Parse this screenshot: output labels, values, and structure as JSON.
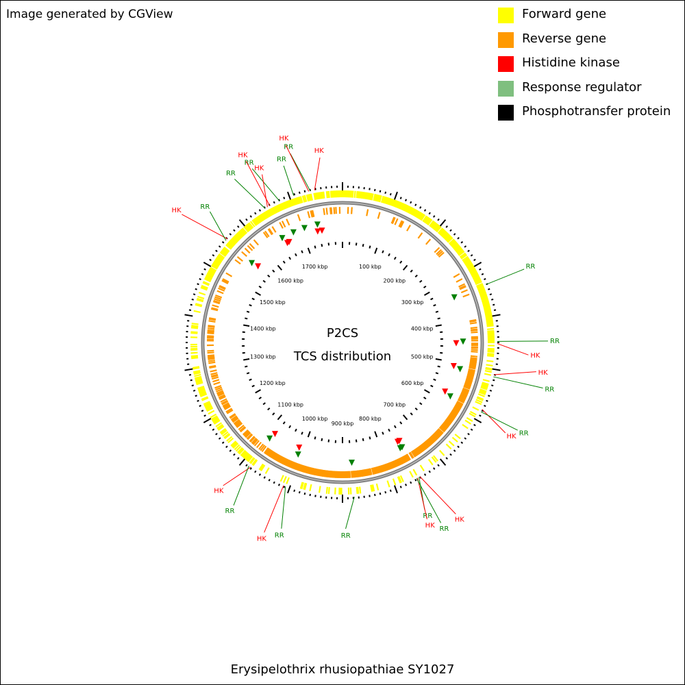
{
  "credit": "Image generated by CGView",
  "legend": [
    {
      "label": "Forward gene",
      "color": "#ffff00"
    },
    {
      "label": "Reverse gene",
      "color": "#ff9900"
    },
    {
      "label": "Histidine kinase",
      "color": "#ff0000"
    },
    {
      "label": "Response regulator",
      "color": "#7fbf7f"
    },
    {
      "label": "Phosphotransfer protein",
      "color": "#000000"
    }
  ],
  "center": {
    "title": "P2CS",
    "subtitle": "TCS distribution"
  },
  "organism": "Erysipelothrix rhusiopathiae SY1027",
  "genome_kbp": 1800,
  "kbp_ticks": [
    {
      "kbp": 100,
      "label": "100 kbp"
    },
    {
      "kbp": 200,
      "label": "200 kbp"
    },
    {
      "kbp": 300,
      "label": "300 kbp"
    },
    {
      "kbp": 400,
      "label": "400 kbp"
    },
    {
      "kbp": 500,
      "label": "500 kbp"
    },
    {
      "kbp": 600,
      "label": "600 kbp"
    },
    {
      "kbp": 700,
      "label": "700 kbp"
    },
    {
      "kbp": 800,
      "label": "800 kbp"
    },
    {
      "kbp": 900,
      "label": "900 kbp"
    },
    {
      "kbp": 1000,
      "label": "1000 kbp"
    },
    {
      "kbp": 1100,
      "label": "1100 kbp"
    },
    {
      "kbp": 1200,
      "label": "1200 kbp"
    },
    {
      "kbp": 1300,
      "label": "1300 kbp"
    },
    {
      "kbp": 1400,
      "label": "1400 kbp"
    },
    {
      "kbp": 1500,
      "label": "1500 kbp"
    },
    {
      "kbp": 1600,
      "label": "1600 kbp"
    },
    {
      "kbp": 1700,
      "label": "1700 kbp"
    }
  ],
  "tcs_features": [
    {
      "kbp": 1748,
      "label": "HK",
      "kind": "hk"
    },
    {
      "kbp": 1740,
      "label": "RR",
      "kind": "rr"
    },
    {
      "kbp": 1737,
      "label": "HK",
      "kind": "hk"
    },
    {
      "kbp": 1708,
      "label": "RR",
      "kind": "rr"
    },
    {
      "kbp": 1680,
      "label": "RR",
      "kind": "rr"
    },
    {
      "kbp": 1660,
      "label": "HK",
      "kind": "hk"
    },
    {
      "kbp": 1655,
      "label": "HK",
      "kind": "hk"
    },
    {
      "kbp": 1650,
      "label": "RR",
      "kind": "rr"
    },
    {
      "kbp": 1560,
      "label": "HK",
      "kind": "hk"
    },
    {
      "kbp": 1556,
      "label": "RR",
      "kind": "rr"
    },
    {
      "kbp": 340,
      "label": "RR",
      "kind": "rr"
    },
    {
      "kbp": 448,
      "label": "RR",
      "kind": "rr"
    },
    {
      "kbp": 452,
      "label": "HK",
      "kind": "hk"
    },
    {
      "kbp": 510,
      "label": "HK",
      "kind": "hk"
    },
    {
      "kbp": 514,
      "label": "RR",
      "kind": "rr"
    },
    {
      "kbp": 578,
      "label": "HK",
      "kind": "hk"
    },
    {
      "kbp": 583,
      "label": "RR",
      "kind": "rr"
    },
    {
      "kbp": 750,
      "label": "HK",
      "kind": "hk"
    },
    {
      "kbp": 752,
      "label": "RR",
      "kind": "rr"
    },
    {
      "kbp": 755,
      "label": "HK",
      "kind": "hk"
    },
    {
      "kbp": 757,
      "label": "RR",
      "kind": "rr"
    },
    {
      "kbp": 878,
      "label": "RR",
      "kind": "rr"
    },
    {
      "kbp": 1008,
      "label": "RR",
      "kind": "rr"
    },
    {
      "kbp": 1012,
      "label": "HK",
      "kind": "hk"
    },
    {
      "kbp": 1082,
      "label": "HK",
      "kind": "hk"
    },
    {
      "kbp": 1086,
      "label": "RR",
      "kind": "rr"
    }
  ],
  "colors": {
    "forward": "#ffff00",
    "reverse": "#ff9900",
    "hk": "#ff0000",
    "rr": "#008000",
    "rr_legend": "#7fbf7f",
    "backbone": "#808080"
  }
}
